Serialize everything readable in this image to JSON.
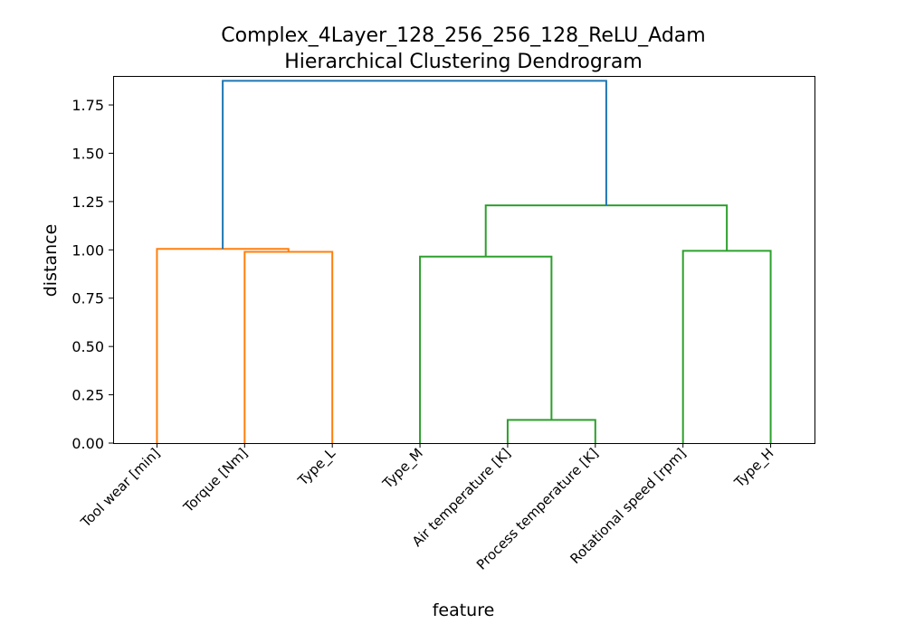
{
  "chart_data": {
    "type": "dendrogram",
    "title_line1": "Complex_4Layer_128_256_256_128_ReLU_Adam",
    "title_line2": "Hierarchical Clustering Dendrogram",
    "xlabel": "feature",
    "ylabel": "distance",
    "ylim": [
      0,
      1.9
    ],
    "yticks": [
      0.0,
      0.25,
      0.5,
      0.75,
      1.0,
      1.25,
      1.5,
      1.75
    ],
    "ytick_labels": [
      "0.00",
      "0.25",
      "0.50",
      "0.75",
      "1.00",
      "1.25",
      "1.50",
      "1.75"
    ],
    "leaves": [
      "Tool wear [min]",
      "Torque [Nm]",
      "Type_L",
      "Type_M",
      "Air temperature [K]",
      "Process temperature [K]",
      "Rotational speed [rpm]",
      "Type_H"
    ],
    "colors": {
      "orange": "#ff7f0e",
      "green": "#2ca02c",
      "blue": "#1f77b4"
    },
    "links": [
      {
        "left": "leaf:1",
        "right": "leaf:2",
        "height": 0.99,
        "color": "orange"
      },
      {
        "left": "leaf:0",
        "right": "node:0",
        "height": 1.005,
        "color": "orange"
      },
      {
        "left": "leaf:4",
        "right": "leaf:5",
        "height": 0.12,
        "color": "green"
      },
      {
        "left": "leaf:3",
        "right": "node:2",
        "height": 0.965,
        "color": "green"
      },
      {
        "left": "leaf:6",
        "right": "leaf:7",
        "height": 0.995,
        "color": "green"
      },
      {
        "left": "node:3",
        "right": "node:4",
        "height": 1.23,
        "color": "green"
      },
      {
        "left": "node:1",
        "right": "node:5",
        "height": 1.875,
        "color": "blue"
      }
    ]
  }
}
